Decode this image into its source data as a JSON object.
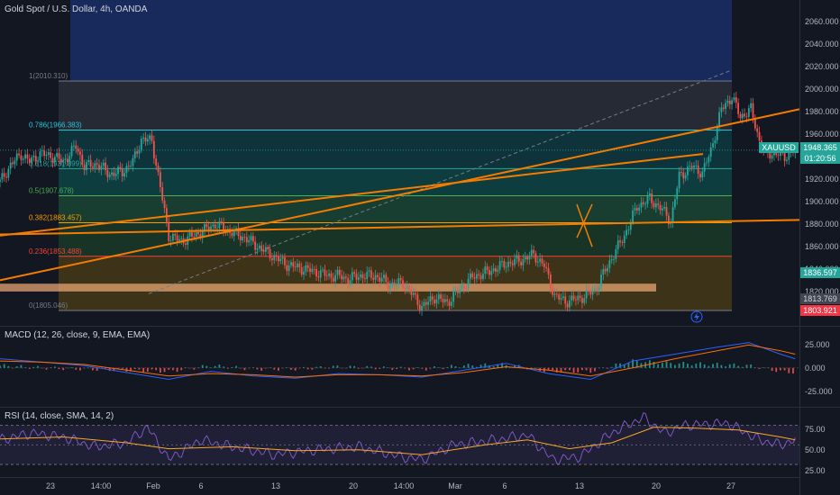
{
  "main_legend": "Gold Spot / U.S. Dollar, 4h, OANDA",
  "macd_legend": "MACD (12, 26, close, 9, EMA, EMA)",
  "rsi_legend": "RSI (14, close, SMA, 14, 2)",
  "symbol_tag": "XAUUSD",
  "price_tag": {
    "price": "1948.365",
    "countdown": "01:20:56"
  },
  "tags": {
    "a": "1836.597",
    "b": "1813.769",
    "c": "1803.921"
  },
  "price_ticks": [
    "2060.000",
    "2040.000",
    "2020.000",
    "2000.000",
    "1980.000",
    "1960.000",
    "1940.000",
    "1920.000",
    "1900.000",
    "1880.000",
    "1860.000",
    "1840.000",
    "1820.000"
  ],
  "macd_ticks": [
    "25.000",
    "0.000",
    "-25.000"
  ],
  "rsi_ticks": [
    "75.00",
    "50.00",
    "25.00"
  ],
  "time_labels": [
    "23",
    "14:00",
    "Feb",
    "6",
    "13",
    "20",
    "14:00",
    "Mar",
    "6",
    "13",
    "20",
    "27"
  ],
  "fib_labels": [
    "1(2010.310)",
    "0.786(1966.383)",
    "0.618(1931.899)",
    "0.5(1907.678)",
    "0.382(1883.457)",
    "0.236(1853.488)",
    "0(1805.046)"
  ],
  "colors": {
    "up": "#26a69a",
    "down": "#ef5350",
    "trend": "#f57c00",
    "background": "#131722",
    "blue": "#2962ff",
    "red_tag": "#f23645"
  },
  "chart_data": {
    "type": "candlestick",
    "title": "Gold Spot / U.S. Dollar, 4h, OANDA",
    "xlabel": "",
    "ylabel": "",
    "x": [
      "23",
      "14:00",
      "Feb",
      "6",
      "13",
      "20",
      "14:00",
      "Mar",
      "6",
      "13",
      "20",
      "27"
    ],
    "ylim": [
      1805,
      2065
    ],
    "close_path": [
      [
        0,
        1920
      ],
      [
        5,
        1935
      ],
      [
        10,
        1945
      ],
      [
        14,
        1938
      ],
      [
        19,
        1945
      ],
      [
        25,
        1943
      ],
      [
        30,
        1938
      ],
      [
        36,
        1952
      ],
      [
        40,
        1934
      ],
      [
        46,
        1936
      ],
      [
        52,
        1927
      ],
      [
        58,
        1929
      ],
      [
        63,
        1938
      ],
      [
        67,
        1958
      ],
      [
        72,
        1957
      ],
      [
        76,
        1915
      ],
      [
        80,
        1872
      ],
      [
        86,
        1867
      ],
      [
        94,
        1874
      ],
      [
        102,
        1882
      ],
      [
        110,
        1875
      ],
      [
        116,
        1870
      ],
      [
        124,
        1860
      ],
      [
        130,
        1853
      ],
      [
        136,
        1846
      ],
      [
        142,
        1843
      ],
      [
        149,
        1840
      ],
      [
        156,
        1836
      ],
      [
        161,
        1836
      ],
      [
        165,
        1833
      ],
      [
        170,
        1836
      ],
      [
        178,
        1836
      ],
      [
        185,
        1828
      ],
      [
        191,
        1830
      ],
      [
        196,
        1818
      ],
      [
        200,
        1808
      ],
      [
        206,
        1817
      ],
      [
        212,
        1812
      ],
      [
        218,
        1824
      ],
      [
        224,
        1835
      ],
      [
        232,
        1840
      ],
      [
        240,
        1847
      ],
      [
        247,
        1850
      ],
      [
        253,
        1855
      ],
      [
        258,
        1845
      ],
      [
        263,
        1818
      ],
      [
        268,
        1813
      ],
      [
        275,
        1816
      ],
      [
        282,
        1823
      ],
      [
        290,
        1852
      ],
      [
        296,
        1872
      ],
      [
        302,
        1898
      ],
      [
        308,
        1905
      ],
      [
        314,
        1895
      ],
      [
        318,
        1885
      ],
      [
        322,
        1925
      ],
      [
        328,
        1934
      ],
      [
        333,
        1928
      ],
      [
        337,
        1948
      ],
      [
        342,
        1985
      ],
      [
        347,
        1996
      ],
      [
        351,
        1978
      ],
      [
        356,
        1985
      ],
      [
        360,
        1957
      ],
      [
        363,
        1944
      ],
      [
        368,
        1946
      ],
      [
        372,
        1942
      ],
      [
        376,
        1948
      ]
    ],
    "fib_levels": [
      {
        "ratio": "1",
        "price": 2010.31
      },
      {
        "ratio": "0.786",
        "price": 1966.383
      },
      {
        "ratio": "0.618",
        "price": 1931.899
      },
      {
        "ratio": "0.5",
        "price": 1907.678
      },
      {
        "ratio": "0.382",
        "price": 1883.457
      },
      {
        "ratio": "0.236",
        "price": 1853.488
      },
      {
        "ratio": "0",
        "price": 1805.046
      }
    ],
    "macd": {
      "ylim": [
        -30,
        32
      ],
      "line_path": [
        [
          0,
          8
        ],
        [
          20,
          5
        ],
        [
          40,
          2
        ],
        [
          60,
          -4
        ],
        [
          80,
          -10
        ],
        [
          100,
          -3
        ],
        [
          120,
          -7
        ],
        [
          140,
          -9
        ],
        [
          160,
          -5
        ],
        [
          180,
          -6
        ],
        [
          200,
          -8
        ],
        [
          220,
          -2
        ],
        [
          240,
          4
        ],
        [
          260,
          -5
        ],
        [
          280,
          -10
        ],
        [
          300,
          6
        ],
        [
          320,
          12
        ],
        [
          340,
          18
        ],
        [
          355,
          22
        ],
        [
          370,
          12
        ],
        [
          377,
          8
        ]
      ],
      "signal_path": [
        [
          0,
          6
        ],
        [
          20,
          5
        ],
        [
          40,
          3
        ],
        [
          60,
          -2
        ],
        [
          80,
          -7
        ],
        [
          100,
          -5
        ],
        [
          120,
          -6
        ],
        [
          140,
          -8
        ],
        [
          160,
          -6
        ],
        [
          180,
          -6
        ],
        [
          200,
          -7
        ],
        [
          220,
          -4
        ],
        [
          240,
          1
        ],
        [
          260,
          -2
        ],
        [
          280,
          -7
        ],
        [
          300,
          0
        ],
        [
          320,
          8
        ],
        [
          340,
          15
        ],
        [
          355,
          20
        ],
        [
          370,
          15
        ],
        [
          377,
          12
        ]
      ]
    },
    "rsi": {
      "ylim": [
        20,
        85
      ],
      "overbought": 70,
      "oversold": 30,
      "rsi_path": [
        [
          0,
          55
        ],
        [
          15,
          62
        ],
        [
          30,
          58
        ],
        [
          45,
          48
        ],
        [
          60,
          52
        ],
        [
          70,
          68
        ],
        [
          80,
          35
        ],
        [
          95,
          55
        ],
        [
          110,
          48
        ],
        [
          130,
          40
        ],
        [
          150,
          45
        ],
        [
          170,
          48
        ],
        [
          190,
          38
        ],
        [
          200,
          35
        ],
        [
          215,
          50
        ],
        [
          235,
          55
        ],
        [
          250,
          60
        ],
        [
          262,
          35
        ],
        [
          275,
          38
        ],
        [
          290,
          62
        ],
        [
          305,
          78
        ],
        [
          315,
          62
        ],
        [
          325,
          70
        ],
        [
          345,
          72
        ],
        [
          360,
          55
        ],
        [
          370,
          50
        ],
        [
          377,
          55
        ]
      ],
      "ma_path": [
        [
          0,
          56
        ],
        [
          30,
          58
        ],
        [
          60,
          52
        ],
        [
          80,
          46
        ],
        [
          110,
          48
        ],
        [
          140,
          44
        ],
        [
          170,
          45
        ],
        [
          200,
          40
        ],
        [
          230,
          50
        ],
        [
          250,
          55
        ],
        [
          270,
          46
        ],
        [
          290,
          52
        ],
        [
          310,
          68
        ],
        [
          330,
          67
        ],
        [
          350,
          65
        ],
        [
          370,
          58
        ],
        [
          377,
          55
        ]
      ]
    }
  }
}
